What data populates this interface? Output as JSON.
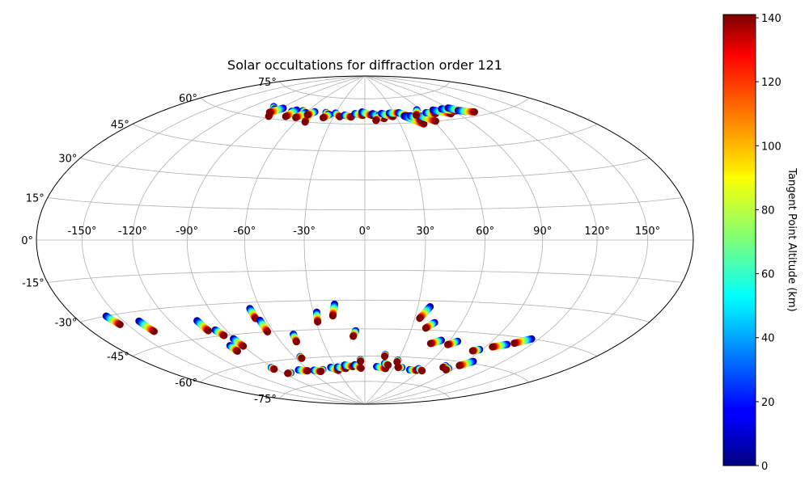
{
  "chart_data": {
    "type": "scatter",
    "projection": "aitoff/hammer (all-sky)",
    "title": "Solar occultations for diffraction order 121",
    "longitude_ticks": [
      "-150°",
      "-120°",
      "-90°",
      "-60°",
      "-30°",
      "0°",
      "30°",
      "60°",
      "90°",
      "120°",
      "150°"
    ],
    "longitude_values": [
      -150,
      -120,
      -90,
      -60,
      -30,
      0,
      30,
      60,
      90,
      120,
      150
    ],
    "latitude_ticks": [
      "75°",
      "60°",
      "45°",
      "30°",
      "15°",
      "0°",
      "-15°",
      "-30°",
      "-45°",
      "-60°",
      "-75°"
    ],
    "latitude_values": [
      75,
      60,
      45,
      30,
      15,
      0,
      -15,
      -30,
      -45,
      -60,
      -75
    ],
    "colorbar": {
      "label": "Tangent Point Altitude (km)",
      "ticks": [
        "0",
        "20",
        "40",
        "60",
        "80",
        "100",
        "120",
        "140"
      ],
      "tick_values": [
        0,
        20,
        40,
        60,
        80,
        100,
        120,
        140
      ],
      "range": [
        0,
        141
      ],
      "colormap": "jet"
    },
    "occultations": [
      {
        "lon": -100,
        "lat": 66,
        "dlon": 8,
        "dlat": -2
      },
      {
        "lon": -95,
        "lat": 65,
        "dlon": 6,
        "dlat": -4
      },
      {
        "lon": -88,
        "lat": 66,
        "dlon": -6,
        "dlat": -3
      },
      {
        "lon": -75,
        "lat": 65,
        "dlon": 8,
        "dlat": -1
      },
      {
        "lon": -72,
        "lat": 66,
        "dlon": -2,
        "dlat": -4
      },
      {
        "lon": -65,
        "lat": 66,
        "dlon": 6,
        "dlat": -1
      },
      {
        "lon": -60,
        "lat": 65,
        "dlon": -4,
        "dlat": -3
      },
      {
        "lon": -55,
        "lat": 64,
        "dlon": 3,
        "dlat": -4
      },
      {
        "lon": -52,
        "lat": 66,
        "dlon": -4,
        "dlat": -2
      },
      {
        "lon": -40,
        "lat": 66,
        "dlon": 4,
        "dlat": -1
      },
      {
        "lon": -35,
        "lat": 65,
        "dlon": -4,
        "dlat": -2
      },
      {
        "lon": -30,
        "lat": 66,
        "dlon": 6,
        "dlat": -2
      },
      {
        "lon": -20,
        "lat": 65,
        "dlon": 7,
        "dlat": -1
      },
      {
        "lon": -10,
        "lat": 66,
        "dlon": 8,
        "dlat": -1
      },
      {
        "lon": -3,
        "lat": 67,
        "dlon": 10,
        "dlat": -2
      },
      {
        "lon": 8,
        "lat": 66,
        "dlon": 10,
        "dlat": -3
      },
      {
        "lon": 14,
        "lat": 65,
        "dlon": -4,
        "dlat": -3
      },
      {
        "lon": 17,
        "lat": 66,
        "dlon": 10,
        "dlat": -2
      },
      {
        "lon": 25,
        "lat": 66,
        "dlon": 10,
        "dlat": 0
      },
      {
        "lon": 35,
        "lat": 66,
        "dlon": 6,
        "dlat": -2
      },
      {
        "lon": 38,
        "lat": 64,
        "dlon": 12,
        "dlat": -5
      },
      {
        "lon": 44,
        "lat": 64,
        "dlon": 6,
        "dlat": -3
      },
      {
        "lon": 52,
        "lat": 64,
        "dlon": 10,
        "dlat": -4
      },
      {
        "lon": 56,
        "lat": 67,
        "dlon": -6,
        "dlat": -3
      },
      {
        "lon": 62,
        "lat": 65,
        "dlon": 8,
        "dlat": -1
      },
      {
        "lon": 72,
        "lat": 66,
        "dlon": 12,
        "dlat": -3
      },
      {
        "lon": 82,
        "lat": 66,
        "dlon": 10,
        "dlat": -2
      },
      {
        "lon": 90,
        "lat": 66,
        "dlon": 10,
        "dlat": -3
      },
      {
        "lon": 95,
        "lat": 64,
        "dlon": 12,
        "dlat": -2
      },
      {
        "lon": -158,
        "lat": -30,
        "dlon": 3,
        "dlat": -4
      },
      {
        "lon": -140,
        "lat": -34,
        "dlon": 2,
        "dlat": -5
      },
      {
        "lon": -103,
        "lat": -37,
        "dlon": 1,
        "dlat": -5
      },
      {
        "lon": -97,
        "lat": -42,
        "dlon": 2,
        "dlat": -3
      },
      {
        "lon": -91,
        "lat": -47,
        "dlon": 1,
        "dlat": -4
      },
      {
        "lon": -99,
        "lat": -50,
        "dlon": 0,
        "dlat": -3
      },
      {
        "lon": -66,
        "lat": -33,
        "dlon": 0,
        "dlat": -5
      },
      {
        "lon": -64,
        "lat": -39,
        "dlon": 0,
        "dlat": -6
      },
      {
        "lon": -48,
        "lat": -47,
        "dlon": -1,
        "dlat": -4
      },
      {
        "lon": -28,
        "lat": -36,
        "dlon": -1,
        "dlat": -5
      },
      {
        "lon": -17,
        "lat": -32,
        "dlon": -2,
        "dlat": -6
      },
      {
        "lon": -6,
        "lat": -46,
        "dlon": -2,
        "dlat": -3
      },
      {
        "lon": 37,
        "lat": -33,
        "dlon": -4,
        "dlat": -6
      },
      {
        "lon": 43,
        "lat": -41,
        "dlon": -4,
        "dlat": -3
      },
      {
        "lon": 54,
        "lat": -50,
        "dlon": -6,
        "dlat": -2
      },
      {
        "lon": 66,
        "lat": -50,
        "dlon": -5,
        "dlat": -2
      },
      {
        "lon": 88,
        "lat": -53,
        "dlon": -4,
        "dlat": -1
      },
      {
        "lon": 103,
        "lat": -49,
        "dlon": -8,
        "dlat": -2
      },
      {
        "lon": 115,
        "lat": -45,
        "dlon": -8,
        "dlat": -3
      },
      {
        "lon": -92,
        "lat": -63,
        "dlon": 0,
        "dlat": -1
      },
      {
        "lon": -82,
        "lat": -67,
        "dlon": -4,
        "dlat": 0
      },
      {
        "lon": -70,
        "lat": -66,
        "dlon": 8,
        "dlat": -1
      },
      {
        "lon": -55,
        "lat": -67,
        "dlon": 6,
        "dlat": -1
      },
      {
        "lon": -45,
        "lat": -67,
        "dlon": -4,
        "dlat": -1
      },
      {
        "lon": -35,
        "lat": -66,
        "dlon": 6,
        "dlat": -2
      },
      {
        "lon": -28,
        "lat": -66,
        "dlon": 8,
        "dlat": -1
      },
      {
        "lon": -20,
        "lat": -65,
        "dlon": 8,
        "dlat": -1
      },
      {
        "lon": -10,
        "lat": -65,
        "dlon": 6,
        "dlat": -2
      },
      {
        "lon": -4,
        "lat": -62,
        "dlon": 0,
        "dlat": -1
      },
      {
        "lon": -55,
        "lat": -59,
        "dlon": 0,
        "dlat": -1
      },
      {
        "lon": 12,
        "lat": -66,
        "dlon": 10,
        "dlat": -1
      },
      {
        "lon": 19,
        "lat": -64,
        "dlon": 4,
        "dlat": -1
      },
      {
        "lon": 17,
        "lat": -59,
        "dlon": 0,
        "dlat": -1
      },
      {
        "lon": 30,
        "lat": -62,
        "dlon": 0,
        "dlat": -1
      },
      {
        "lon": 38,
        "lat": -66,
        "dlon": -4,
        "dlat": 0
      },
      {
        "lon": 48,
        "lat": -67,
        "dlon": 8,
        "dlat": 0
      },
      {
        "lon": 56,
        "lat": -66,
        "dlon": 6,
        "dlat": -1
      },
      {
        "lon": 78,
        "lat": -63,
        "dlon": 0,
        "dlat": -1
      },
      {
        "lon": 84,
        "lat": -64,
        "dlon": 0,
        "dlat": -1
      },
      {
        "lon": 96,
        "lat": -59,
        "dlon": -6,
        "dlat": -3
      }
    ]
  }
}
